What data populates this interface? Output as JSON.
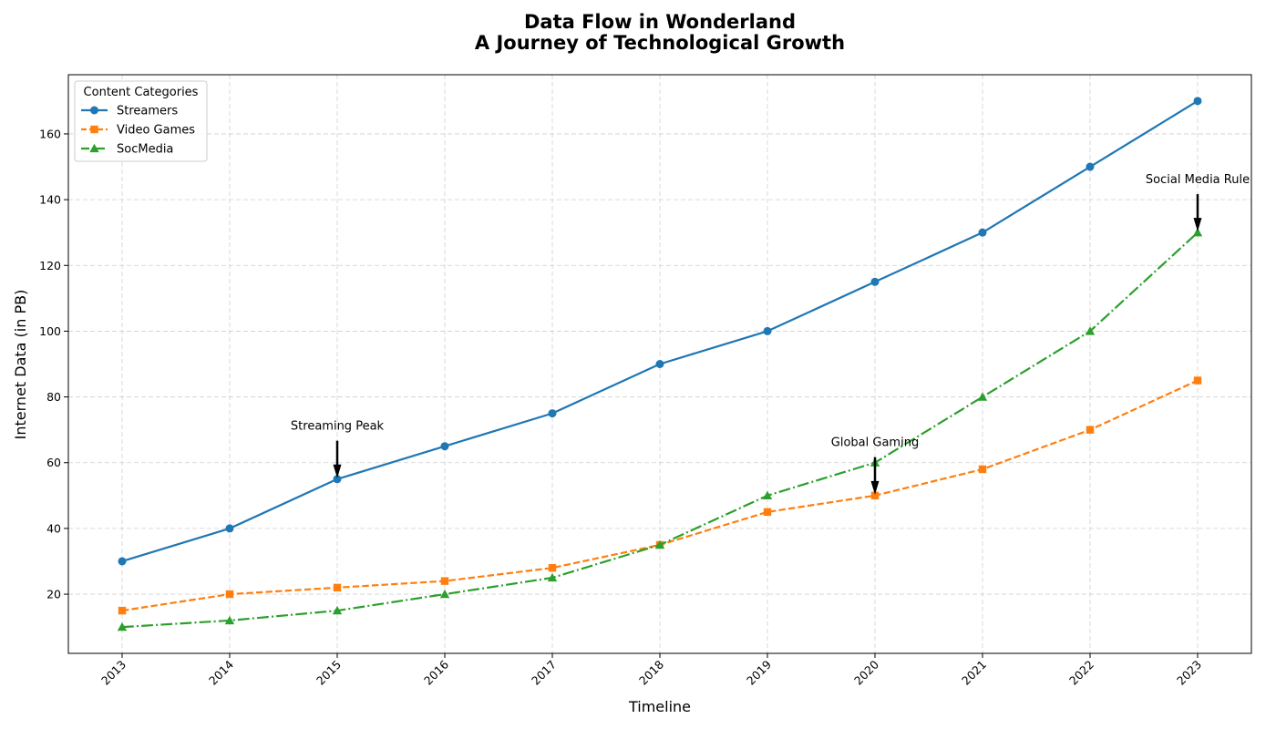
{
  "chart_data": {
    "type": "line",
    "title_line1": "Data Flow in Wonderland",
    "title_line2": "A Journey of Technological Growth",
    "xlabel": "Timeline",
    "ylabel": "Internet Data (in PB)",
    "x": [
      "2013",
      "2014",
      "2015",
      "2016",
      "2017",
      "2018",
      "2019",
      "2020",
      "2021",
      "2022",
      "2023"
    ],
    "ylim": [
      2,
      178
    ],
    "yticks": [
      20,
      40,
      60,
      80,
      100,
      120,
      140,
      160
    ],
    "grid": true,
    "legend": {
      "title": "Content Categories",
      "placement": "top-left"
    },
    "series": [
      {
        "name": "Streamers",
        "values": [
          30,
          40,
          55,
          65,
          75,
          90,
          100,
          115,
          130,
          150,
          170
        ],
        "color": "#1f77b4",
        "marker": "circle",
        "dash": "solid"
      },
      {
        "name": "Video Games",
        "values": [
          15,
          20,
          22,
          24,
          28,
          35,
          45,
          50,
          58,
          70,
          85
        ],
        "color": "#ff7f0e",
        "marker": "square",
        "dash": "dashed"
      },
      {
        "name": "SocMedia",
        "values": [
          10,
          12,
          15,
          20,
          25,
          35,
          50,
          60,
          80,
          100,
          130
        ],
        "color": "#2ca02c",
        "marker": "triangle",
        "dash": "dashdot"
      }
    ],
    "annotations": [
      {
        "text": "Streaming Peak",
        "x": "2015",
        "y": 55,
        "text_y": 70
      },
      {
        "text": "Global Gaming",
        "x": "2020",
        "y": 50,
        "text_y": 65
      },
      {
        "text": "Social Media Rule",
        "x": "2023",
        "y": 130,
        "text_y": 145
      }
    ]
  }
}
